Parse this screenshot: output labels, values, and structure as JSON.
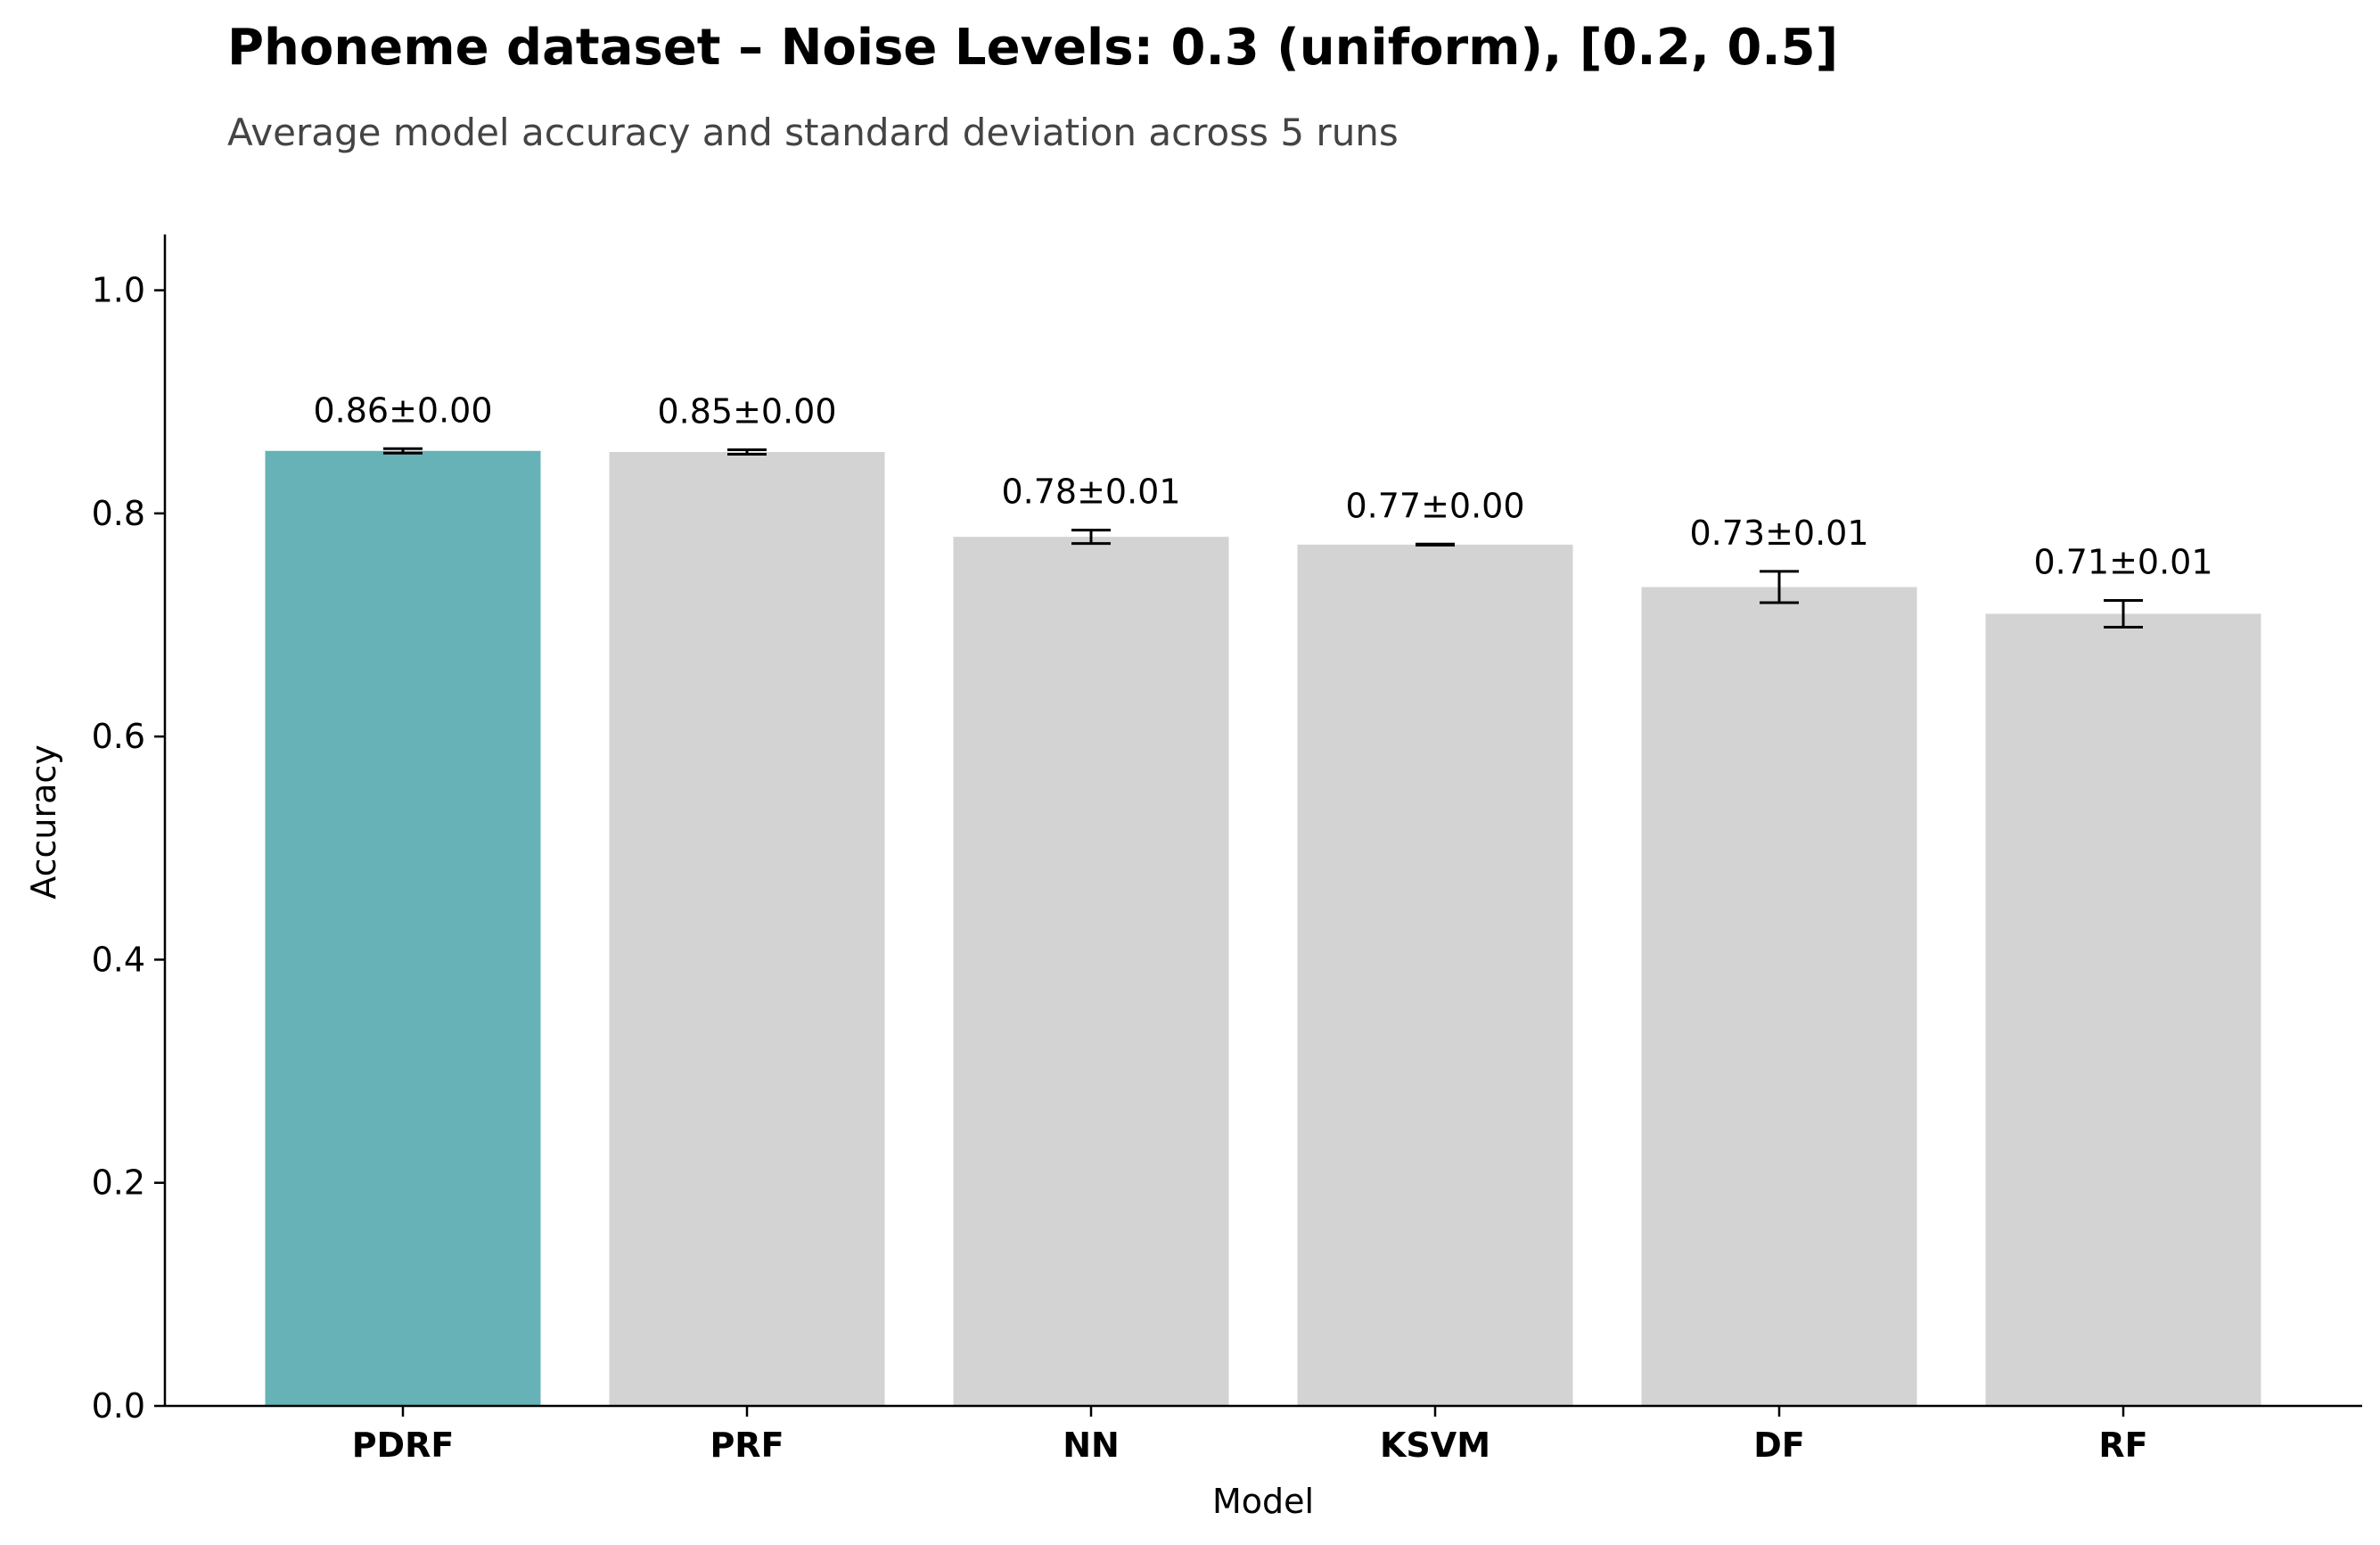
{
  "chart_data": {
    "type": "bar",
    "title": "Phoneme dataset – Noise Levels: 0.3 (uniform), [0.2, 0.5]",
    "subtitle": "Average model accuracy and standard deviation across 5 runs",
    "xlabel": "Model",
    "ylabel": "Accuracy",
    "ylim": [
      0,
      1.05
    ],
    "yticks": [
      "0.0",
      "0.2",
      "0.4",
      "0.6",
      "0.8",
      "1.0"
    ],
    "grid": false,
    "categories": [
      "PDRF",
      "PRF",
      "NN",
      "KSVM",
      "DF",
      "RF"
    ],
    "values": [
      0.856,
      0.855,
      0.779,
      0.772,
      0.734,
      0.71
    ],
    "errors": [
      0.002,
      0.002,
      0.006,
      0.0005,
      0.014,
      0.012
    ],
    "data_labels": [
      "0.86±0.00",
      "0.85±0.00",
      "0.78±0.01",
      "0.77±0.00",
      "0.73±0.01",
      "0.71±0.01"
    ],
    "colors": {
      "highlight": "#66b2b6",
      "default": "#d3d3d3",
      "errorbar": "#000000",
      "axis": "#000000"
    },
    "highlight_index": 0
  }
}
